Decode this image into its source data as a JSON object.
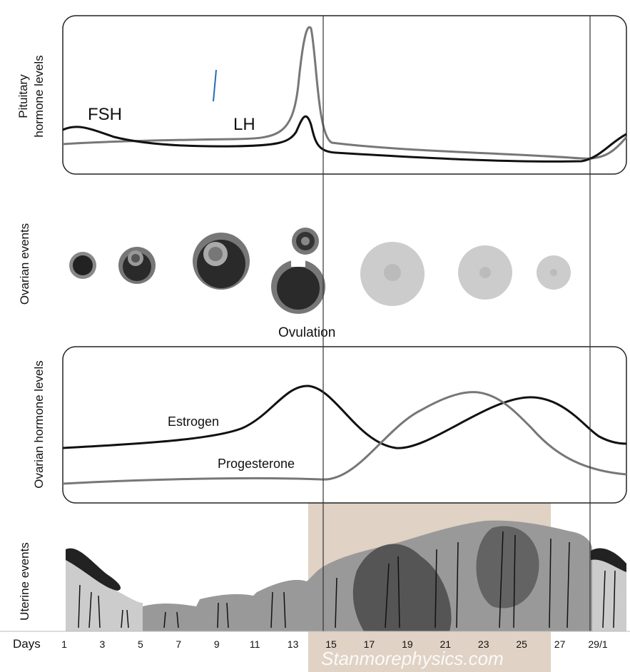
{
  "panels": [
    {
      "label": "Pituitary hormone levels",
      "curves": [
        "FSH",
        "LH"
      ]
    },
    {
      "label": "Ovarian events",
      "annotation": "Ovulation"
    },
    {
      "label": "Ovarian hormone levels",
      "curves": [
        "Estrogen",
        "Progesterone"
      ]
    },
    {
      "label": "Uterine events"
    }
  ],
  "days": {
    "label": "Days",
    "ticks": [
      "1",
      "3",
      "5",
      "7",
      "9",
      "11",
      "13",
      "15",
      "17",
      "19",
      "21",
      "23",
      "25",
      "27",
      "29/1"
    ]
  },
  "watermark": "Stanmorephysics.com"
}
